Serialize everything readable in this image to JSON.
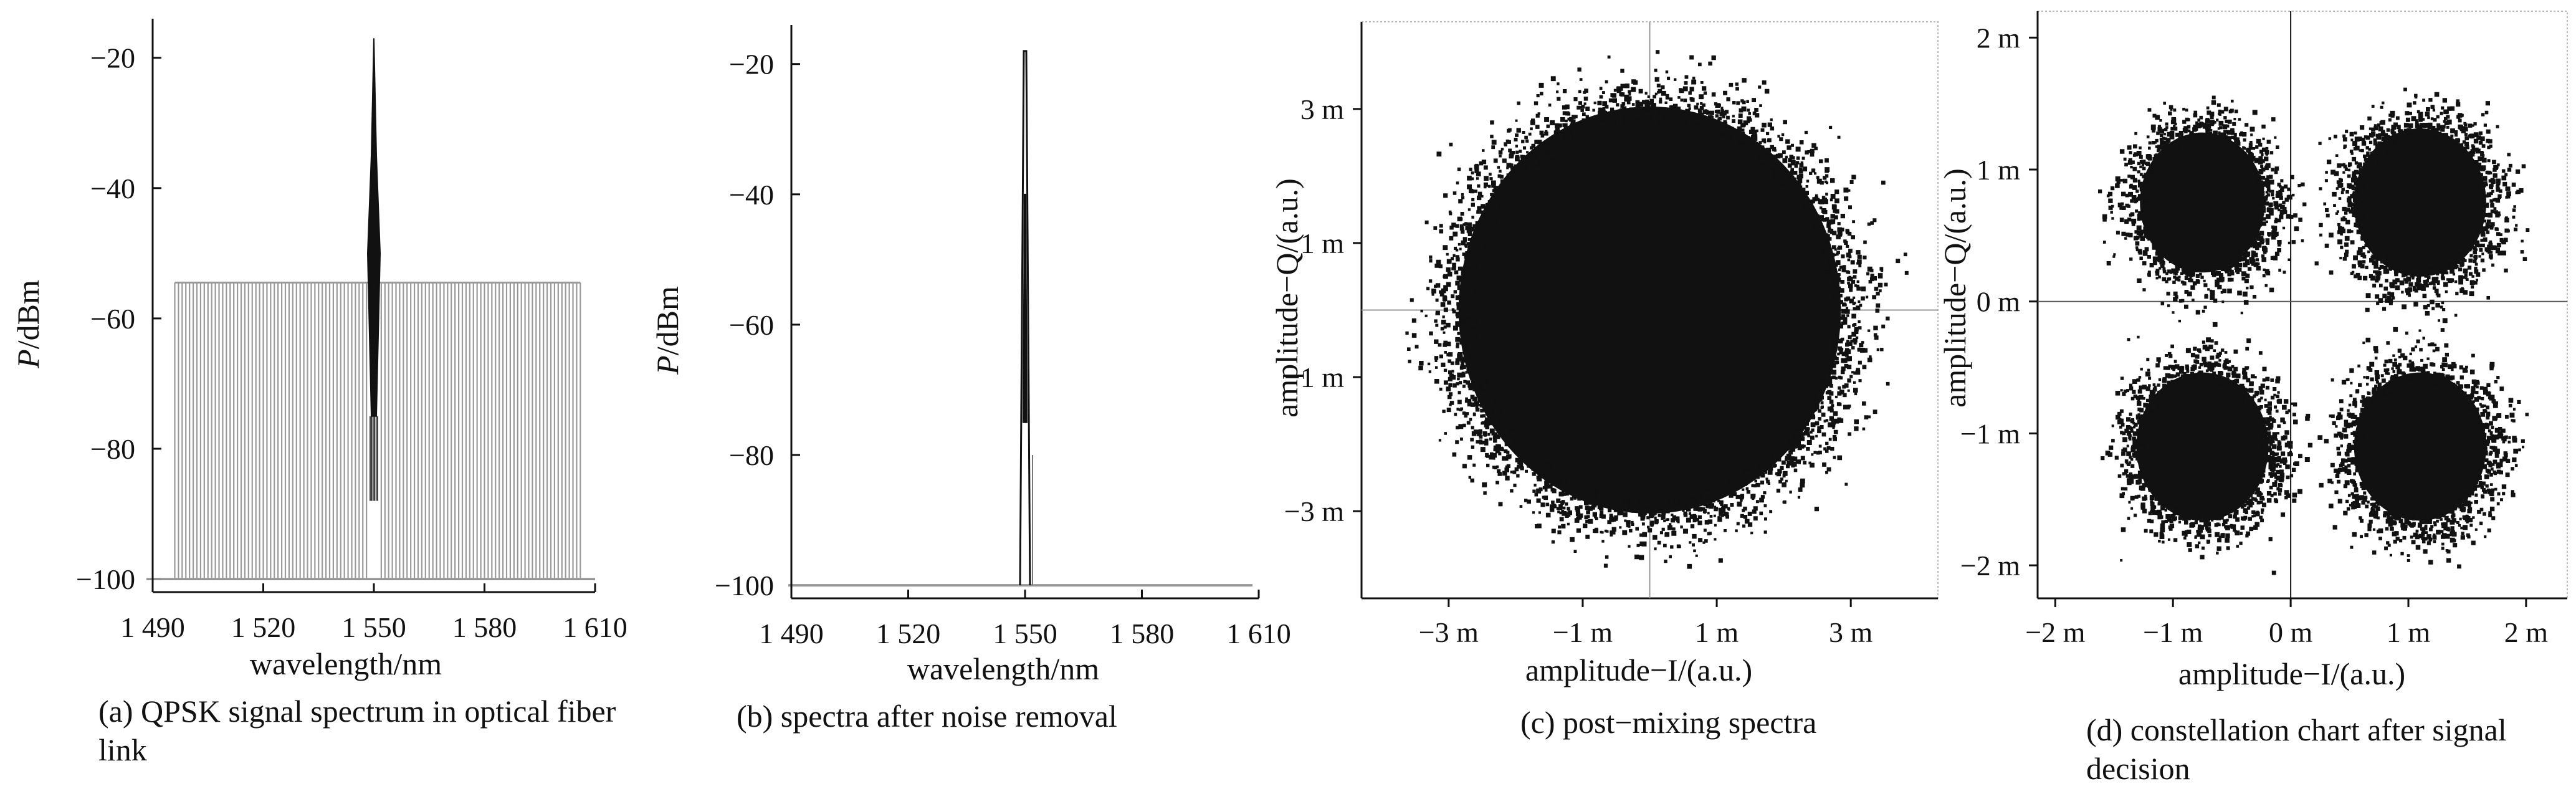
{
  "chart_data": [
    {
      "id": "a",
      "type": "line",
      "caption": "(a) QPSK signal spectrum in optical fiber link",
      "xlabel": "wavelength/nm",
      "ylabel_italic": "P",
      "ylabel_rest": "/dBm",
      "xlim": [
        1490,
        1610
      ],
      "ylim": [
        -102,
        -14
      ],
      "xticks": [
        1490,
        1520,
        1550,
        1580,
        1610
      ],
      "xtick_labels": [
        "1 490",
        "1 520",
        "1 550",
        "1 580",
        "1 610"
      ],
      "yticks": [
        -20,
        -40,
        -60,
        -80,
        -100
      ],
      "ytick_labels": [
        "−20",
        "−40",
        "−60",
        "−80",
        "−100"
      ],
      "noise_floor": -100,
      "channels": {
        "start": 1496,
        "end": 1606,
        "spacing": 1.0,
        "level": -54.5,
        "color": "#9a9a9a"
      },
      "signal": {
        "center": 1550,
        "peak": -17,
        "band_top": -35,
        "band_bottom": -75,
        "color": "#111111"
      }
    },
    {
      "id": "b",
      "type": "line",
      "caption": "(b) spectra after noise removal",
      "xlabel": "wavelength/nm",
      "ylabel_italic": "P",
      "ylabel_rest": "/dBm",
      "xlim": [
        1490,
        1610
      ],
      "ylim": [
        -102,
        -14
      ],
      "xticks": [
        1490,
        1520,
        1550,
        1580,
        1610
      ],
      "xtick_labels": [
        "1 490",
        "1 520",
        "1 550",
        "1 580",
        "1 610"
      ],
      "yticks": [
        -20,
        -40,
        -60,
        -80,
        -100
      ],
      "ytick_labels": [
        "−20",
        "−40",
        "−60",
        "−80",
        "−100"
      ],
      "noise_floor": -100,
      "signal": {
        "center": 1550,
        "peak": -18,
        "inner_peak": -40,
        "color": "#111111"
      }
    },
    {
      "id": "c",
      "type": "scatter",
      "caption": "(c) post−mixing spectra",
      "xlabel": "amplitude−I/(a.u.)",
      "ylabel": "amplitude−Q/(a.u.)",
      "xlim": [
        -4.3,
        4.3
      ],
      "ylim": [
        -4.3,
        4.3
      ],
      "xticks": [
        -3,
        -1,
        1,
        3
      ],
      "xtick_labels": [
        "−3 m",
        "−1 m",
        "1 m",
        "3 m"
      ],
      "yticks": [
        3,
        1,
        -1,
        -3
      ],
      "ytick_labels": [
        "3 m",
        "1 m",
        "−1 m",
        "−3 m"
      ],
      "unit": "m",
      "cluster": {
        "cx": 0,
        "cy": 0,
        "rx": 3.1,
        "ry": 3.3
      },
      "color": "#111111"
    },
    {
      "id": "d",
      "type": "scatter",
      "caption": "(d) constellation chart after signal decision",
      "xlabel": "amplitude−I/(a.u.)",
      "ylabel": "amplitude−Q/(a.u.)",
      "xlim": [
        -2.15,
        2.35
      ],
      "ylim": [
        -2.25,
        2.2
      ],
      "xticks": [
        -2,
        -1,
        0,
        1,
        2
      ],
      "xtick_labels": [
        "−2 m",
        "−1 m",
        "0 m",
        "1 m",
        "2 m"
      ],
      "yticks": [
        2,
        1,
        0,
        -1,
        -2
      ],
      "ytick_labels": [
        "2 m",
        "1 m",
        "0 m",
        "−1 m",
        "−2 m"
      ],
      "unit": "m",
      "clusters": [
        {
          "cx": -0.75,
          "cy": 0.75,
          "r": 0.68
        },
        {
          "cx": 1.1,
          "cy": 0.75,
          "r": 0.72
        },
        {
          "cx": -0.75,
          "cy": -1.1,
          "r": 0.72
        },
        {
          "cx": 1.1,
          "cy": -1.1,
          "r": 0.72
        }
      ],
      "color": "#111111"
    }
  ]
}
